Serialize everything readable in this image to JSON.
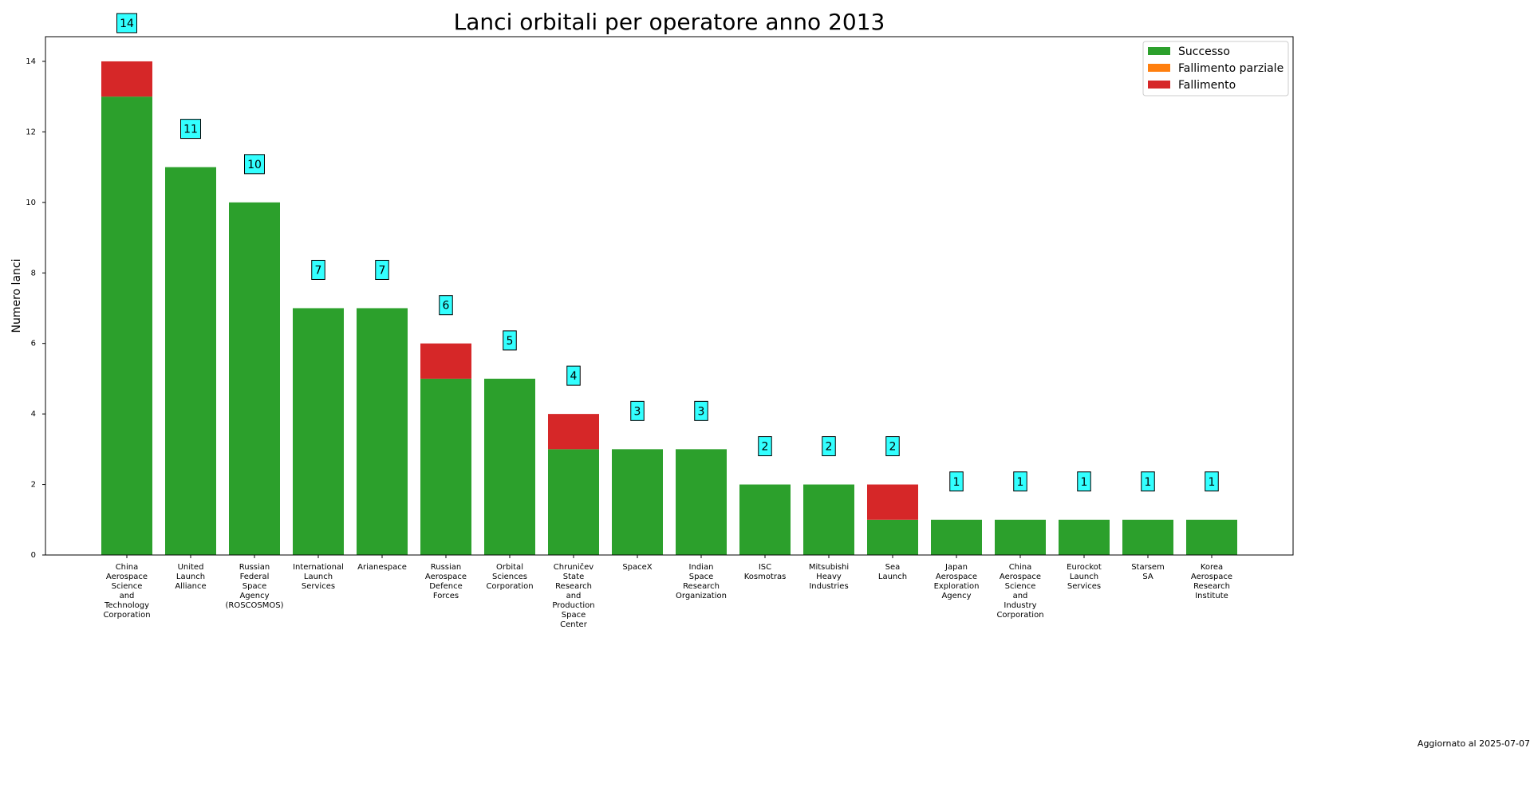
{
  "chart_data": {
    "type": "bar",
    "stacked": true,
    "title": "Lanci orbitali per operatore anno 2013",
    "xlabel": "",
    "ylabel": "Numero lanci",
    "ylim": [
      0,
      14.7
    ],
    "yticks": [
      0,
      2,
      4,
      6,
      8,
      10,
      12,
      14
    ],
    "grid": false,
    "legend_position": "top-right",
    "categories": [
      "China Aerospace Science and Technology Corporation",
      "United Launch Alliance",
      "Russian Federal Space Agency (ROSCOSMOS)",
      "International Launch Services",
      "Arianespace",
      "Russian Aerospace Defence Forces",
      "Orbital Sciences Corporation",
      "Chruničev State Research and Production Space Center",
      "SpaceX",
      "Indian Space Research Organization",
      "ISC Kosmotras",
      "Mitsubishi Heavy Industries",
      "Sea Launch",
      "Japan Aerospace Exploration Agency",
      "China Aerospace Science and Industry Corporation",
      "Eurockot Launch Services",
      "Starsem SA",
      "Korea Aerospace Research Institute"
    ],
    "series": [
      {
        "name": "Successo",
        "color": "#2ca02c",
        "values": [
          13,
          11,
          10,
          7,
          7,
          5,
          5,
          3,
          3,
          3,
          2,
          2,
          1,
          1,
          1,
          1,
          1,
          1
        ]
      },
      {
        "name": "Fallimento parziale",
        "color": "#ff7f0e",
        "values": [
          0,
          0,
          0,
          0,
          0,
          0,
          0,
          0,
          0,
          0,
          0,
          0,
          0,
          0,
          0,
          0,
          0,
          0
        ]
      },
      {
        "name": "Fallimento",
        "color": "#d62728",
        "values": [
          1,
          0,
          0,
          0,
          0,
          1,
          0,
          1,
          0,
          0,
          0,
          0,
          1,
          0,
          0,
          0,
          0,
          0
        ]
      }
    ],
    "totals": [
      "14",
      "11",
      "10",
      "7",
      "7",
      "6",
      "5",
      "4",
      "3",
      "3",
      "2",
      "2",
      "2",
      "1",
      "1",
      "1",
      "1",
      "1"
    ],
    "label_box_color": "#33ffff"
  },
  "footer": {
    "updated": "Aggiornato al 2025-07-07"
  }
}
